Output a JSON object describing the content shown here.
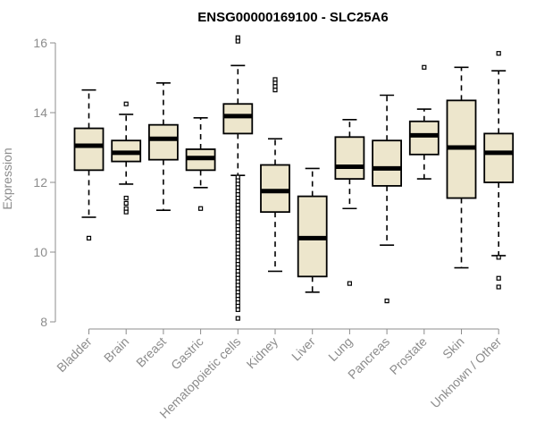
{
  "chart_data": {
    "type": "boxplot",
    "title": "ENSG00000169100 - SLC25A6",
    "xlabel": "",
    "ylabel": "Expression",
    "ylim": [
      8,
      16
    ],
    "yticks": [
      8,
      10,
      12,
      14,
      16
    ],
    "colors": {
      "box_fill": "#ede6cc",
      "box_stroke": "#000000",
      "median": "#000000",
      "axis": "#8c8c8c"
    },
    "categories": [
      "Bladder",
      "Brain",
      "Breast",
      "Gastric",
      "Hematopoietic cells",
      "Kidney",
      "Liver",
      "Lung",
      "Pancreas",
      "Prostate",
      "Skin",
      "Unknown / Other"
    ],
    "boxes": [
      {
        "name": "Bladder",
        "whisker_low": 11.0,
        "q1": 12.35,
        "median": 13.05,
        "q3": 13.55,
        "whisker_high": 14.65,
        "outliers": [
          10.4
        ]
      },
      {
        "name": "Brain",
        "whisker_low": 11.95,
        "q1": 12.6,
        "median": 12.85,
        "q3": 13.2,
        "whisker_high": 13.95,
        "outliers": [
          14.25,
          11.55,
          11.4,
          11.25,
          11.15
        ]
      },
      {
        "name": "Breast",
        "whisker_low": 11.2,
        "q1": 12.65,
        "median": 13.25,
        "q3": 13.65,
        "whisker_high": 14.85,
        "outliers": []
      },
      {
        "name": "Gastric",
        "whisker_low": 11.85,
        "q1": 12.35,
        "median": 12.7,
        "q3": 12.95,
        "whisker_high": 13.85,
        "outliers": [
          11.25
        ]
      },
      {
        "name": "Hematopoietic cells",
        "whisker_low": 12.2,
        "q1": 13.4,
        "median": 13.9,
        "q3": 14.25,
        "whisker_high": 15.35,
        "outliers": [
          16.15,
          16.05,
          12.15,
          12.05,
          11.95,
          11.85,
          11.75,
          11.65,
          11.55,
          11.45,
          11.35,
          11.25,
          11.15,
          11.05,
          10.95,
          10.85,
          10.75,
          10.65,
          10.55,
          10.45,
          10.35,
          10.25,
          10.15,
          10.05,
          9.95,
          9.85,
          9.75,
          9.65,
          9.55,
          9.45,
          9.35,
          9.25,
          9.15,
          9.05,
          8.95,
          8.85,
          8.75,
          8.65,
          8.55,
          8.45,
          8.35,
          8.1
        ]
      },
      {
        "name": "Kidney",
        "whisker_low": 9.45,
        "q1": 11.15,
        "median": 11.75,
        "q3": 12.5,
        "whisker_high": 13.25,
        "outliers": [
          14.95,
          14.85,
          14.75,
          14.65
        ]
      },
      {
        "name": "Liver",
        "whisker_low": 8.85,
        "q1": 9.3,
        "median": 10.4,
        "q3": 11.6,
        "whisker_high": 12.4,
        "outliers": []
      },
      {
        "name": "Lung",
        "whisker_low": 11.25,
        "q1": 12.1,
        "median": 12.45,
        "q3": 13.3,
        "whisker_high": 13.8,
        "outliers": [
          9.1
        ]
      },
      {
        "name": "Pancreas",
        "whisker_low": 10.2,
        "q1": 11.9,
        "median": 12.4,
        "q3": 13.2,
        "whisker_high": 14.5,
        "outliers": [
          8.6
        ]
      },
      {
        "name": "Prostate",
        "whisker_low": 12.1,
        "q1": 12.8,
        "median": 13.35,
        "q3": 13.75,
        "whisker_high": 14.1,
        "outliers": [
          15.3
        ]
      },
      {
        "name": "Skin",
        "whisker_low": 9.55,
        "q1": 11.55,
        "median": 13.0,
        "q3": 14.35,
        "whisker_high": 15.3,
        "outliers": []
      },
      {
        "name": "Unknown / Other",
        "whisker_low": 9.9,
        "q1": 12.0,
        "median": 12.85,
        "q3": 13.4,
        "whisker_high": 15.2,
        "outliers": [
          15.7,
          9.85,
          9.25,
          9.0
        ]
      }
    ]
  }
}
